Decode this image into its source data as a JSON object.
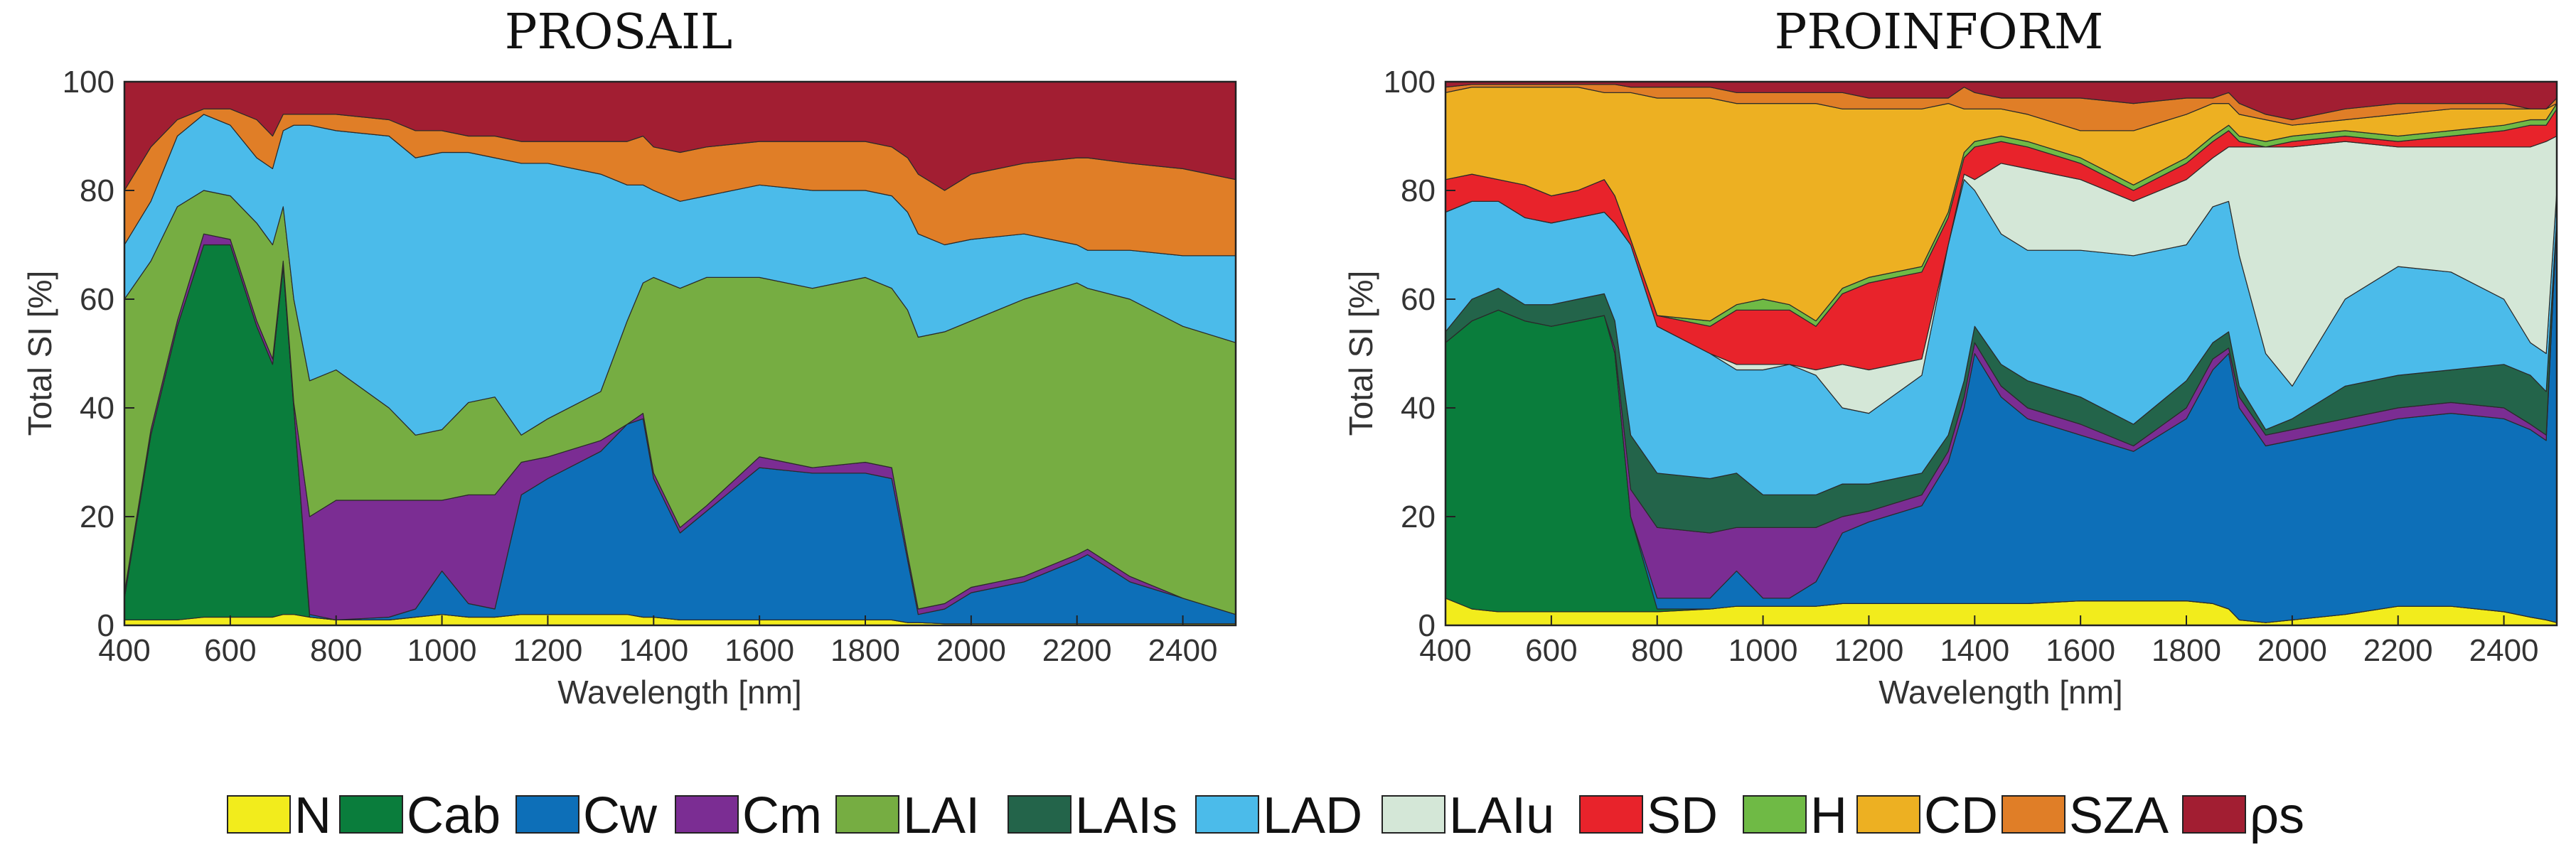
{
  "legend": [
    {
      "key": "N",
      "label": "N",
      "color": "#f2ec1c"
    },
    {
      "key": "Cab",
      "label": "Cab",
      "color": "#0a7d3c"
    },
    {
      "key": "Cw",
      "label": "Cw",
      "color": "#0d6fb8"
    },
    {
      "key": "Cm",
      "label": "Cm",
      "color": "#7b2d93"
    },
    {
      "key": "LAI",
      "label": "LAI",
      "color": "#76ad42"
    },
    {
      "key": "LAIs",
      "label": "LAIs",
      "color": "#23644a"
    },
    {
      "key": "LAD",
      "label": "LAD",
      "color": "#4bbbea"
    },
    {
      "key": "LAIu",
      "label": "LAIu",
      "color": "#d4e7d7"
    },
    {
      "key": "SD",
      "label": "SD",
      "color": "#e8232b"
    },
    {
      "key": "H",
      "label": "H",
      "color": "#6fba45"
    },
    {
      "key": "CD",
      "label": "CD",
      "color": "#edb022"
    },
    {
      "key": "SZA",
      "label": "SZA",
      "color": "#e07e27"
    },
    {
      "key": "rho",
      "label": "ρs",
      "color": "#a21e32"
    }
  ],
  "chart_data": [
    {
      "type": "area",
      "stacked": true,
      "title": "PROSAIL",
      "xlabel": "Wavelength [nm]",
      "ylabel": "Total SI [%]",
      "xlim": [
        400,
        2500
      ],
      "ylim": [
        0,
        100
      ],
      "xticks": [
        400,
        600,
        800,
        1000,
        1200,
        1400,
        1600,
        1800,
        2000,
        2200,
        2400
      ],
      "yticks": [
        0,
        20,
        40,
        60,
        80,
        100
      ],
      "x": [
        400,
        450,
        500,
        550,
        600,
        650,
        680,
        700,
        720,
        750,
        800,
        900,
        950,
        1000,
        1050,
        1100,
        1150,
        1200,
        1300,
        1350,
        1380,
        1400,
        1450,
        1500,
        1600,
        1700,
        1800,
        1850,
        1880,
        1900,
        1950,
        2000,
        2100,
        2200,
        2220,
        2300,
        2400,
        2500
      ],
      "series": [
        {
          "name": "N",
          "key": "N",
          "cumulative": [
            1,
            1,
            1,
            1.5,
            1.5,
            1.5,
            1.5,
            2,
            2,
            1.5,
            1,
            1,
            1.5,
            2,
            1.5,
            1.5,
            2,
            2,
            2,
            2,
            1.5,
            1.5,
            1,
            1,
            1,
            1,
            1,
            1,
            0.5,
            0.5,
            0.3,
            0.3,
            0.3,
            0.3,
            0.3,
            0.3,
            0.3,
            0.3
          ]
        },
        {
          "name": "Cab",
          "key": "Cab",
          "cumulative": [
            5,
            35,
            55,
            70,
            70,
            55,
            48,
            66,
            40,
            1.5,
            1,
            1,
            1.5,
            2,
            1.5,
            1.5,
            2,
            2,
            2,
            2,
            1.5,
            1.5,
            1,
            1,
            1,
            1,
            1,
            1,
            0.5,
            0.5,
            0.3,
            0.3,
            0.3,
            0.3,
            0.3,
            0.3,
            0.3,
            0.3
          ]
        },
        {
          "name": "Cw",
          "key": "Cw",
          "cumulative": [
            5,
            35,
            55,
            70,
            70,
            55,
            48,
            66,
            40,
            2,
            1,
            1.5,
            3,
            10,
            4,
            3,
            24,
            27,
            32,
            37,
            38,
            27,
            17,
            21,
            29,
            28,
            28,
            27,
            12,
            2,
            3,
            6,
            8,
            12,
            13,
            8,
            5,
            2
          ]
        },
        {
          "name": "Cm",
          "key": "Cm",
          "cumulative": [
            6,
            36,
            56,
            72,
            71,
            56,
            49,
            67,
            41,
            20,
            23,
            23,
            23,
            23,
            24,
            24,
            30,
            31,
            34,
            37,
            39,
            28,
            18,
            22,
            31,
            29,
            30,
            29,
            13,
            3,
            4,
            7,
            9,
            13,
            14,
            9,
            5,
            2
          ]
        },
        {
          "name": "LAI",
          "key": "LAI",
          "cumulative": [
            60,
            67,
            77,
            80,
            79,
            74,
            70,
            77,
            60,
            45,
            47,
            40,
            35,
            36,
            41,
            42,
            35,
            38,
            43,
            56,
            63,
            64,
            62,
            64,
            64,
            62,
            64,
            62,
            58,
            53,
            54,
            56,
            60,
            63,
            62,
            60,
            55,
            52
          ]
        },
        {
          "name": "LAD",
          "key": "LAD",
          "cumulative": [
            70,
            78,
            90,
            94,
            92,
            86,
            84,
            91,
            92,
            92,
            91,
            90,
            86,
            87,
            87,
            86,
            85,
            85,
            83,
            81,
            81,
            80,
            78,
            79,
            81,
            80,
            80,
            79,
            76,
            72,
            70,
            71,
            72,
            70,
            69,
            69,
            68,
            68
          ]
        },
        {
          "name": "SZA",
          "key": "SZA",
          "cumulative": [
            80,
            88,
            93,
            95,
            95,
            93,
            90,
            94,
            94,
            94,
            94,
            93,
            91,
            91,
            90,
            90,
            89,
            89,
            89,
            89,
            90,
            88,
            87,
            88,
            89,
            89,
            89,
            88,
            86,
            83,
            80,
            83,
            85,
            86,
            86,
            85,
            84,
            82
          ]
        },
        {
          "name": "ρs",
          "key": "rho",
          "cumulative": [
            100,
            100,
            100,
            100,
            100,
            100,
            100,
            100,
            100,
            100,
            100,
            100,
            100,
            100,
            100,
            100,
            100,
            100,
            100,
            100,
            100,
            100,
            100,
            100,
            100,
            100,
            100,
            100,
            100,
            100,
            100,
            100,
            100,
            100,
            100,
            100,
            100,
            100
          ]
        }
      ]
    },
    {
      "type": "area",
      "stacked": true,
      "title": "PROINFORM",
      "xlabel": "Wavelength [nm]",
      "ylabel": "Total SI [%]",
      "xlim": [
        400,
        2500
      ],
      "ylim": [
        0,
        100
      ],
      "xticks": [
        400,
        600,
        800,
        1000,
        1200,
        1400,
        1600,
        1800,
        2000,
        2200,
        2400
      ],
      "yticks": [
        0,
        20,
        40,
        60,
        80,
        100
      ],
      "x": [
        400,
        450,
        500,
        550,
        600,
        650,
        700,
        720,
        750,
        800,
        900,
        950,
        1000,
        1050,
        1100,
        1150,
        1200,
        1300,
        1350,
        1380,
        1400,
        1450,
        1500,
        1600,
        1700,
        1800,
        1850,
        1880,
        1900,
        1950,
        2000,
        2100,
        2200,
        2300,
        2400,
        2450,
        2480,
        2500
      ],
      "series": [
        {
          "name": "N",
          "key": "N",
          "cumulative": [
            5,
            3,
            2.5,
            2.5,
            2.5,
            2.5,
            2.5,
            2.5,
            2.5,
            2.5,
            3,
            3.5,
            3.5,
            3.5,
            3.5,
            4,
            4,
            4,
            4,
            4,
            4,
            4,
            4,
            4.5,
            4.5,
            4.5,
            4,
            3,
            1,
            0.5,
            1,
            2,
            3.5,
            3.5,
            2.5,
            1.5,
            1,
            0.5
          ]
        },
        {
          "name": "Cab",
          "key": "Cab",
          "cumulative": [
            52,
            56,
            58,
            56,
            55,
            56,
            57,
            50,
            20,
            3,
            3,
            3.5,
            3.5,
            3.5,
            3.5,
            4,
            4,
            4,
            4,
            4,
            4,
            4,
            4,
            4.5,
            4.5,
            4.5,
            4,
            3,
            1,
            0.5,
            1,
            2,
            3.5,
            3.5,
            2.5,
            1.5,
            1,
            0.5
          ]
        },
        {
          "name": "Cw",
          "key": "Cw",
          "cumulative": [
            52,
            56,
            58,
            56,
            55,
            56,
            57,
            50,
            20,
            5,
            5,
            10,
            5,
            5,
            8,
            17,
            19,
            22,
            30,
            40,
            50,
            42,
            38,
            35,
            32,
            38,
            47,
            50,
            40,
            33,
            34,
            36,
            38,
            39,
            38,
            36,
            34,
            75
          ]
        },
        {
          "name": "Cm",
          "key": "Cm",
          "cumulative": [
            52,
            56,
            58,
            56,
            55,
            56,
            57,
            51,
            25,
            18,
            17,
            18,
            18,
            18,
            18,
            20,
            21,
            24,
            32,
            42,
            52,
            44,
            40,
            37,
            33,
            40,
            49,
            51,
            42,
            35,
            36,
            38,
            40,
            41,
            40,
            37,
            35,
            75
          ]
        },
        {
          "name": "LAIs",
          "key": "LAIs",
          "cumulative": [
            54,
            60,
            62,
            59,
            59,
            60,
            61,
            56,
            35,
            28,
            27,
            28,
            24,
            24,
            24,
            26,
            26,
            28,
            35,
            45,
            55,
            48,
            45,
            42,
            37,
            45,
            52,
            54,
            44,
            36,
            38,
            44,
            46,
            47,
            48,
            46,
            43,
            75
          ]
        },
        {
          "name": "LAD",
          "key": "LAD",
          "cumulative": [
            76,
            78,
            78,
            75,
            74,
            75,
            76,
            74,
            70,
            55,
            50,
            47,
            47,
            48,
            46,
            40,
            39,
            46,
            70,
            82,
            80,
            72,
            69,
            69,
            68,
            70,
            77,
            78,
            68,
            50,
            44,
            60,
            66,
            65,
            60,
            52,
            50,
            80
          ]
        },
        {
          "name": "LAIu",
          "key": "LAIu",
          "cumulative": [
            76,
            78,
            78,
            75,
            74,
            75,
            76,
            74,
            70,
            55,
            50,
            48,
            48,
            48,
            47,
            48,
            47,
            49,
            70,
            83,
            82,
            85,
            84,
            82,
            78,
            82,
            86,
            88,
            88,
            88,
            88,
            89,
            88,
            88,
            88,
            88,
            89,
            90
          ]
        },
        {
          "name": "SD",
          "key": "SD",
          "cumulative": [
            82,
            83,
            82,
            81,
            79,
            80,
            82,
            79,
            71,
            57,
            55,
            58,
            58,
            58,
            55,
            61,
            63,
            65,
            75,
            86,
            88,
            89,
            88,
            85,
            80,
            85,
            89,
            91,
            89,
            88,
            89,
            90,
            89,
            90,
            91,
            92,
            92,
            95
          ]
        },
        {
          "name": "H",
          "key": "H",
          "cumulative": [
            82,
            83,
            82,
            81,
            79,
            80,
            82,
            79,
            71,
            57,
            56,
            59,
            60,
            59,
            56,
            62,
            64,
            66,
            76,
            87,
            89,
            90,
            89,
            86,
            81,
            86,
            90,
            92,
            90,
            89,
            90,
            91,
            90,
            91,
            92,
            93,
            93,
            96
          ]
        },
        {
          "name": "CD",
          "key": "CD",
          "cumulative": [
            98,
            99,
            99,
            99,
            99,
            99,
            98,
            98,
            98,
            97,
            97,
            96,
            96,
            96,
            96,
            95,
            95,
            95,
            96,
            95,
            95,
            95,
            94,
            91,
            91,
            94,
            96,
            96,
            94,
            93,
            92,
            93,
            94,
            95,
            95,
            95,
            95,
            96
          ]
        },
        {
          "name": "SZA",
          "key": "SZA",
          "cumulative": [
            99,
            99.5,
            99.5,
            99.5,
            99.5,
            99.5,
            99.5,
            99.5,
            99,
            99,
            99,
            98,
            98,
            98,
            98,
            98,
            97,
            97,
            97,
            99,
            98,
            97,
            97,
            97,
            96,
            97,
            97,
            98,
            96,
            94,
            93,
            95,
            96,
            96,
            96,
            95,
            95,
            97
          ]
        },
        {
          "name": "ρs",
          "key": "rho",
          "cumulative": [
            100,
            100,
            100,
            100,
            100,
            100,
            100,
            100,
            100,
            100,
            100,
            100,
            100,
            100,
            100,
            100,
            100,
            100,
            100,
            100,
            100,
            100,
            100,
            100,
            100,
            100,
            100,
            100,
            100,
            100,
            100,
            100,
            100,
            100,
            100,
            100,
            100,
            100
          ]
        }
      ]
    }
  ]
}
